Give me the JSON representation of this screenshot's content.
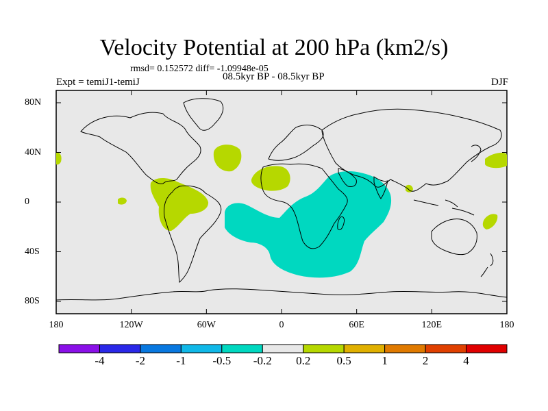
{
  "title": "Velocity Potential at 200 hPa (km2/s)",
  "stats": "rmsd= 0.152572 diff= -1.09948e-05",
  "experiment": "Expt = temiJ1-temiJ",
  "period": "08.5kyr BP - 08.5kyr BP",
  "season": "DJF",
  "map": {
    "background_color": "#e8e8e8",
    "lon_ticks": [
      "180",
      "120W",
      "60W",
      "0",
      "60E",
      "120E",
      "180"
    ],
    "lat_ticks": [
      "80N",
      "40N",
      "0",
      "40S",
      "80S"
    ]
  },
  "anomalies": [
    {
      "name": "north-atlantic-positive",
      "sign": "positive",
      "color": "#b6d800"
    },
    {
      "name": "west-africa-positive",
      "sign": "positive",
      "color": "#b6d800"
    },
    {
      "name": "south-america-positive",
      "sign": "positive",
      "color": "#b6d800"
    },
    {
      "name": "pacific-east-positive",
      "sign": "positive",
      "color": "#b6d800"
    },
    {
      "name": "pacific-west-positive",
      "sign": "positive",
      "color": "#b6d800"
    },
    {
      "name": "maritime-positive",
      "sign": "positive",
      "color": "#b6d800"
    },
    {
      "name": "africa-indian-ocean-negative",
      "sign": "negative",
      "color": "#00d8c0"
    }
  ],
  "colorbar": {
    "colors": [
      "#8a10e8",
      "#2a28e8",
      "#0878e0",
      "#10b8e8",
      "#00d8c0",
      "#e8e8e8",
      "#b6d800",
      "#e0b000",
      "#e07a00",
      "#e04000",
      "#e00000"
    ],
    "labels": [
      "-4",
      "-2",
      "-1",
      "-0.5",
      "-0.2",
      "0.2",
      "0.5",
      "1",
      "2",
      "4"
    ]
  }
}
